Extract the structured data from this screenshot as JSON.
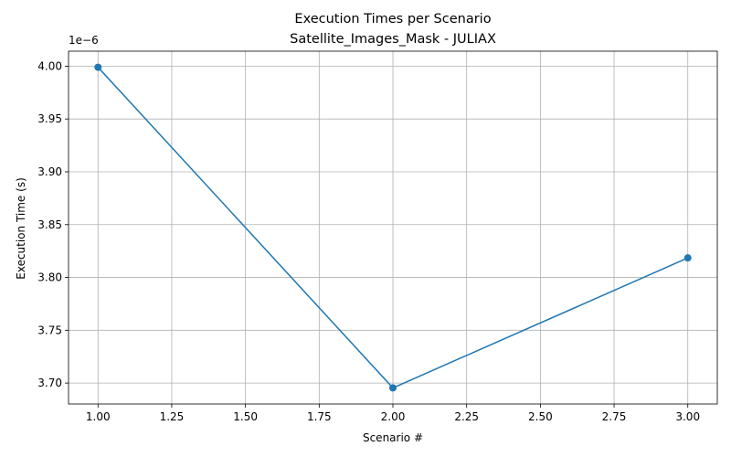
{
  "chart_data": {
    "type": "line",
    "title": "Execution Times per Scenario",
    "subtitle": "Satellite_Images_Mask - JULIAX",
    "xlabel": "Scenario #",
    "ylabel": "Execution Time (s)",
    "offset_label": "1e−6",
    "x": [
      1.0,
      2.0,
      3.0
    ],
    "series": [
      {
        "values": [
          3.999e-06,
          3.6954e-06,
          3.8185e-06
        ],
        "color": "#1f77b4",
        "marker": "circle"
      }
    ],
    "xlim": [
      0.9,
      3.1
    ],
    "ylim": [
      3.6802e-06,
      4.0142e-06
    ],
    "xticks": [
      1.0,
      1.25,
      1.5,
      1.75,
      2.0,
      2.25,
      2.5,
      2.75,
      3.0
    ],
    "xtick_labels": [
      "1.00",
      "1.25",
      "1.50",
      "1.75",
      "2.00",
      "2.25",
      "2.50",
      "2.75",
      "3.00"
    ],
    "yticks": [
      3.7e-06,
      3.75e-06,
      3.8e-06,
      3.85e-06,
      3.9e-06,
      3.95e-06,
      4e-06
    ],
    "ytick_labels": [
      "3.70",
      "3.75",
      "3.80",
      "3.85",
      "3.90",
      "3.95",
      "4.00"
    ],
    "grid": true
  }
}
